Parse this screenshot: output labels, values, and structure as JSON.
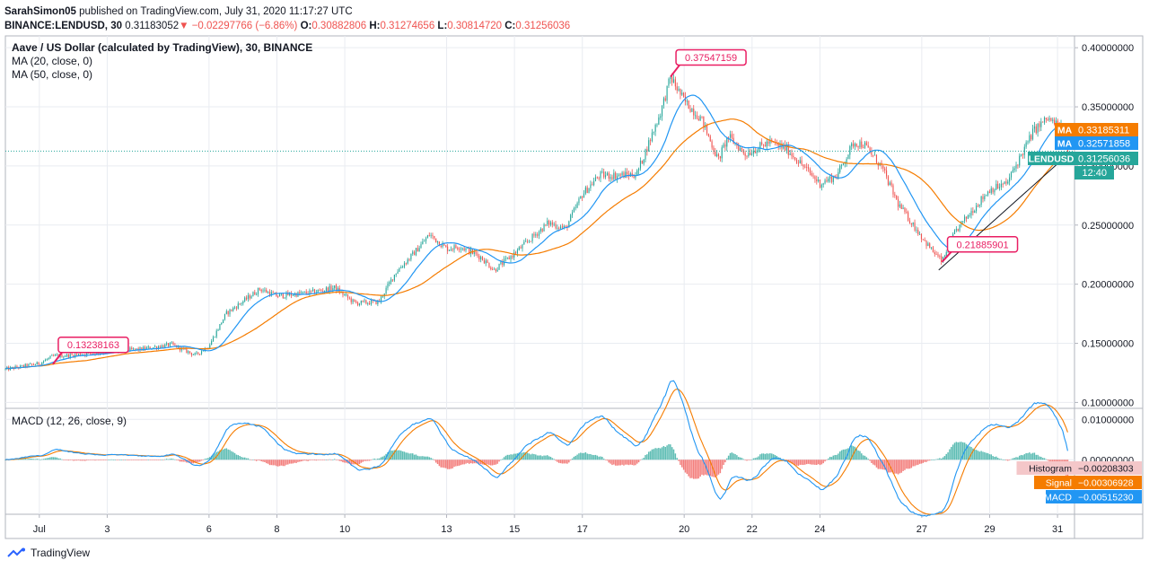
{
  "header": {
    "publisher_user": "SarahSimon05",
    "publisher_text": "published on TradingView.com, July 31, 2020 11:17:27 UTC",
    "symbol": "BINANCE:LENDUSD, 30",
    "price": "0.31183052",
    "change": "−0.02297766 (−6.86%)",
    "ohlc": [
      {
        "k": "O:",
        "v": "0.30882806"
      },
      {
        "k": "H:",
        "v": "0.31274656"
      },
      {
        "k": "L:",
        "v": "0.30814720"
      },
      {
        "k": "C:",
        "v": "0.31256036"
      }
    ]
  },
  "legend": {
    "title": "Aave / US Dollar (calculated by TradingView), 30, BINANCE",
    "ma1": "MA (20, close, 0)",
    "ma2": "MA (50, close, 0)",
    "macd": "MACD (12, 26, close, 9)"
  },
  "colors": {
    "up": "#26a69a",
    "down": "#ef5350",
    "ma20": "#2196f3",
    "ma50": "#f57c00",
    "callout": "#e91e63",
    "macd": "#2196f3",
    "signal": "#f57c00",
    "grid": "#e9ecf1",
    "priceline": "#26a69a"
  },
  "chart_data": [
    {
      "type": "candlestick",
      "title": "Aave / US Dollar (calculated by TradingView), 30, BINANCE",
      "ylim": [
        0.095,
        0.41
      ],
      "y_ticks": [
        "0.40000000",
        "0.35000000",
        "0.30000000",
        "0.25000000",
        "0.20000000",
        "0.15000000",
        "0.10000000"
      ],
      "x_ticks": [
        "Jul",
        "3",
        "6",
        "8",
        "10",
        "13",
        "15",
        "17",
        "20",
        "22",
        "24",
        "27",
        "29",
        "31"
      ],
      "x_tick_dates": [
        1,
        3,
        6,
        8,
        10,
        13,
        15,
        17,
        20,
        22,
        24,
        27,
        29,
        31
      ],
      "xlim": [
        0.0,
        31.5
      ],
      "path": [
        [
          0.0,
          0.128
        ],
        [
          1.0,
          0.133
        ],
        [
          1.4,
          0.139
        ],
        [
          2.0,
          0.14
        ],
        [
          3.0,
          0.143
        ],
        [
          4.0,
          0.145
        ],
        [
          4.9,
          0.149
        ],
        [
          5.6,
          0.14
        ],
        [
          6.0,
          0.148
        ],
        [
          6.5,
          0.175
        ],
        [
          7.5,
          0.196
        ],
        [
          8.0,
          0.19
        ],
        [
          9.0,
          0.193
        ],
        [
          9.7,
          0.197
        ],
        [
          10.3,
          0.184
        ],
        [
          11.0,
          0.185
        ],
        [
          11.5,
          0.21
        ],
        [
          12.0,
          0.225
        ],
        [
          12.5,
          0.242
        ],
        [
          13.0,
          0.23
        ],
        [
          13.4,
          0.232
        ],
        [
          14.0,
          0.223
        ],
        [
          14.4,
          0.212
        ],
        [
          15.0,
          0.226
        ],
        [
          16.0,
          0.252
        ],
        [
          16.5,
          0.247
        ],
        [
          17.0,
          0.276
        ],
        [
          17.5,
          0.292
        ],
        [
          18.0,
          0.292
        ],
        [
          18.6,
          0.293
        ],
        [
          19.3,
          0.345
        ],
        [
          19.6,
          0.375
        ],
        [
          20.0,
          0.355
        ],
        [
          20.5,
          0.34
        ],
        [
          21.0,
          0.305
        ],
        [
          21.3,
          0.325
        ],
        [
          21.8,
          0.31
        ],
        [
          22.5,
          0.32
        ],
        [
          23.0,
          0.315
        ],
        [
          23.5,
          0.3
        ],
        [
          24.0,
          0.285
        ],
        [
          24.5,
          0.292
        ],
        [
          25.0,
          0.32
        ],
        [
          25.3,
          0.318
        ],
        [
          25.8,
          0.3
        ],
        [
          26.3,
          0.268
        ],
        [
          26.8,
          0.248
        ],
        [
          27.2,
          0.232
        ],
        [
          27.6,
          0.219
        ],
        [
          28.0,
          0.245
        ],
        [
          28.5,
          0.263
        ],
        [
          29.0,
          0.28
        ],
        [
          29.5,
          0.285
        ],
        [
          29.8,
          0.302
        ],
        [
          30.3,
          0.33
        ],
        [
          30.7,
          0.34
        ],
        [
          31.1,
          0.333
        ],
        [
          31.3,
          0.312
        ]
      ],
      "series": [
        {
          "name": "MA (20, close, 0)",
          "last_value": "0.33185311"
        },
        {
          "name": "MA (50, close, 0)",
          "last_value": "0.32571858"
        }
      ],
      "price_labels": [
        {
          "label": "MA",
          "value": "0.33185311",
          "price": 0.3319
        },
        {
          "label": "MA",
          "value": "0.32571858",
          "price": 0.3257
        },
        {
          "label": "LENDUSD",
          "value": "0.31256036",
          "price": 0.3126
        }
      ],
      "countdown": "12:40",
      "annotations": [
        {
          "text": "0.13238163",
          "x": 1.4,
          "y": 0.1324
        },
        {
          "text": "0.37547159",
          "x": 19.6,
          "y": 0.3755
        },
        {
          "text": "0.21885901",
          "x": 27.6,
          "y": 0.2189
        }
      ],
      "trendline": [
        [
          27.5,
          0.212
        ],
        [
          31.2,
          0.307
        ]
      ]
    },
    {
      "type": "macd",
      "title": "MACD (12, 26, close, 9)",
      "ylim": [
        -0.0135,
        0.0125
      ],
      "y_ticks": [
        "0.01000000",
        "0.00000000"
      ],
      "series": [
        {
          "name": "Histogram",
          "last_value": "−0.00208303"
        },
        {
          "name": "Signal",
          "last_value": "−0.00306928"
        },
        {
          "name": "MACD",
          "last_value": "−0.00515230"
        }
      ]
    }
  ],
  "footer": {
    "brand": "TradingView"
  }
}
